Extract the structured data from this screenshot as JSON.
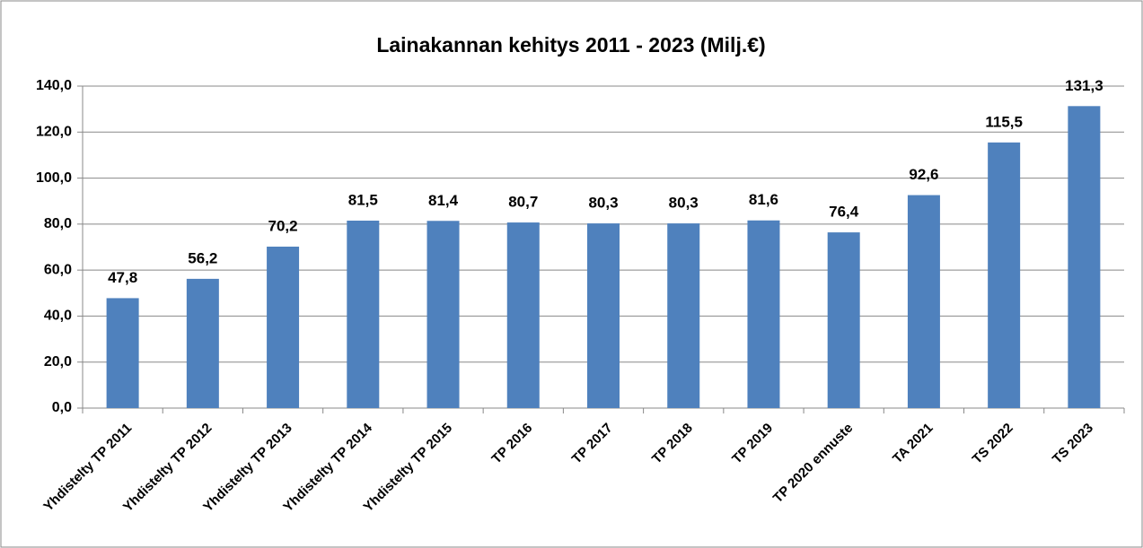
{
  "chart_data": {
    "type": "bar",
    "title": "Lainakannan kehitys 2011 - 2023 (Milj.€)",
    "categories": [
      "Yhdistelty TP 2011",
      "Yhdistelty TP 2012",
      "Yhdistelty TP 2013",
      "Yhdistelty TP 2014",
      "Yhdistelty TP 2015",
      "TP 2016",
      "TP 2017",
      "TP 2018",
      "TP 2019",
      "TP 2020 ennuste",
      "TA 2021",
      "TS 2022",
      "TS 2023"
    ],
    "values": [
      47.8,
      56.2,
      70.2,
      81.5,
      81.4,
      80.7,
      80.3,
      80.3,
      81.6,
      76.4,
      92.6,
      115.5,
      131.3
    ],
    "value_labels": [
      "47,8",
      "56,2",
      "70,2",
      "81,5",
      "81,4",
      "80,7",
      "80,3",
      "80,3",
      "81,6",
      "76,4",
      "92,6",
      "115,5",
      "131,3"
    ],
    "color": "#4f81bd",
    "ylim": [
      0,
      140
    ],
    "yticks": [
      {
        "value": 0,
        "label": "0,0"
      },
      {
        "value": 20,
        "label": "20,0"
      },
      {
        "value": 40,
        "label": "40,0"
      },
      {
        "value": 60,
        "label": "60,0"
      },
      {
        "value": 80,
        "label": "80,0"
      },
      {
        "value": 100,
        "label": "100,0"
      },
      {
        "value": 120,
        "label": "120,0"
      },
      {
        "value": 140,
        "label": "140,0"
      }
    ],
    "grid": true
  }
}
